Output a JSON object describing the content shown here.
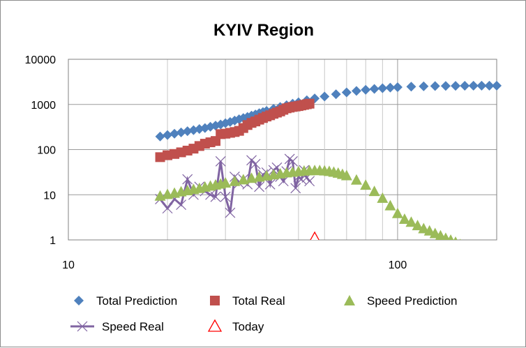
{
  "chart_data": {
    "type": "scatter",
    "title": "KYIV Region",
    "xlabel": "",
    "ylabel": "",
    "x_scale": "log",
    "y_scale": "log",
    "xlim": [
      10,
      200
    ],
    "ylim": [
      1,
      10000
    ],
    "x_ticks": [
      "10",
      "100"
    ],
    "y_ticks": [
      "1",
      "10",
      "100",
      "1000",
      "10000"
    ],
    "grid": true,
    "legend_position": "bottom",
    "series": [
      {
        "name": "Total Prediction",
        "marker": "diamond",
        "color": "#4F81BD",
        "x": [
          19,
          20,
          21,
          22,
          23,
          24,
          25,
          26,
          27,
          28,
          29,
          30,
          31,
          32,
          33,
          34,
          35,
          36,
          37,
          38,
          39,
          40,
          42,
          44,
          46,
          48,
          50,
          53,
          56,
          60,
          65,
          70,
          75,
          80,
          85,
          90,
          95,
          100,
          110,
          120,
          130,
          140,
          150,
          160,
          170,
          180,
          190,
          200
        ],
        "y": [
          195,
          210,
          225,
          240,
          255,
          270,
          285,
          300,
          320,
          340,
          360,
          385,
          410,
          440,
          470,
          500,
          530,
          565,
          600,
          640,
          680,
          720,
          800,
          880,
          960,
          1040,
          1120,
          1240,
          1360,
          1500,
          1680,
          1850,
          1990,
          2110,
          2210,
          2290,
          2360,
          2410,
          2480,
          2520,
          2550,
          2570,
          2580,
          2590,
          2595,
          2600,
          2600,
          2600
        ]
      },
      {
        "name": "Total Real",
        "marker": "square",
        "color": "#C0504D",
        "x": [
          19,
          20,
          21,
          22,
          23,
          24,
          25,
          26,
          27,
          28,
          29,
          30,
          31,
          32,
          33,
          34,
          35,
          36,
          37,
          38,
          39,
          40,
          41,
          42,
          43,
          44,
          45,
          46,
          47,
          48,
          49,
          50,
          51,
          52,
          53,
          54
        ],
        "y": [
          68,
          75,
          80,
          87,
          95,
          105,
          120,
          135,
          145,
          155,
          220,
          225,
          235,
          245,
          260,
          300,
          350,
          390,
          420,
          460,
          500,
          540,
          575,
          620,
          660,
          700,
          760,
          820,
          850,
          880,
          900,
          920,
          950,
          980,
          1010,
          1040
        ]
      },
      {
        "name": "Speed Prediction",
        "marker": "triangle",
        "color": "#9BBB59",
        "x": [
          19,
          20,
          21,
          22,
          23,
          24,
          25,
          26,
          27,
          28,
          29,
          30,
          32,
          34,
          36,
          38,
          40,
          42,
          44,
          46,
          48,
          50,
          52,
          54,
          56,
          58,
          60,
          62,
          64,
          66,
          68,
          70,
          75,
          80,
          85,
          90,
          95,
          100,
          105,
          110,
          115,
          120,
          125,
          130,
          135,
          140,
          145,
          150,
          155
        ],
        "y": [
          9.5,
          10.3,
          11,
          11.8,
          12.5,
          13.3,
          14,
          15,
          15.8,
          16.7,
          17.5,
          18.5,
          20,
          21.8,
          23.5,
          25,
          26.5,
          28,
          29.5,
          31,
          32,
          33,
          34,
          34.5,
          34.8,
          34.8,
          34.2,
          33.3,
          32,
          30.5,
          28.7,
          26.8,
          21.5,
          16.5,
          12,
          8.5,
          5.8,
          3.9,
          2.9,
          2.5,
          2.1,
          1.8,
          1.6,
          1.4,
          1.25,
          1.1,
          1.0,
          0.9,
          0.8
        ]
      },
      {
        "name": "Speed Real",
        "marker": "x-line",
        "color": "#8064A2",
        "x": [
          19,
          20,
          21,
          22,
          23,
          24,
          25,
          26,
          27,
          28,
          29,
          30,
          31,
          32,
          33,
          34,
          35,
          36,
          37,
          38,
          39,
          40,
          41,
          42,
          43,
          44,
          45,
          46,
          47,
          48,
          49,
          50,
          51,
          52,
          53,
          54
        ],
        "y": [
          8,
          5,
          8,
          6,
          22,
          10,
          15,
          12,
          10,
          9,
          55,
          9,
          4,
          25,
          18,
          22,
          17,
          58,
          48,
          15,
          28,
          31,
          17,
          35,
          40,
          25,
          20,
          33,
          62,
          55,
          14,
          25,
          22,
          35,
          24,
          20
        ]
      },
      {
        "name": "Today",
        "marker": "open-triangle",
        "color": "#FF0000",
        "x": [
          56
        ],
        "y": [
          1
        ]
      }
    ]
  }
}
